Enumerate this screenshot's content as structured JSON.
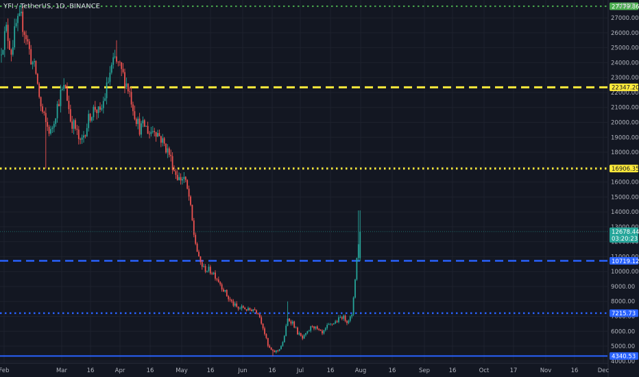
{
  "title": "YFI / TetherUS, 1D, BINANCE",
  "axis_unit": "USDT",
  "colors": {
    "background": "#131722",
    "grid": "#1e222d",
    "up": "#26a69a",
    "down": "#ef5350",
    "axis_text": "#b2b5be"
  },
  "chart_data": {
    "type": "candlestick",
    "x_ticks": [
      "Feb",
      "Mar",
      "16",
      "Apr",
      "16",
      "May",
      "16",
      "Jun",
      "16",
      "Jul",
      "16",
      "Aug",
      "16",
      "Sep",
      "16",
      "Oct",
      "17",
      "Nov",
      "16",
      "Dec"
    ],
    "y_ticks": [
      4000,
      5000,
      6000,
      7000,
      8000,
      9000,
      10000,
      11000,
      12000,
      13000,
      14000,
      15000,
      16000,
      17000,
      18000,
      19000,
      20000,
      21000,
      22000,
      23000,
      24000,
      25000,
      26000,
      27000
    ],
    "y_tick_labels": [
      "4000.00",
      "5000.00",
      "6000.00",
      "7000.00",
      "8000.00",
      "9000.00",
      "10000.00",
      "11000.00",
      "12000.00",
      "13000.00",
      "14000.00",
      "15000.00",
      "16000.00",
      "17000.00",
      "18000.00",
      "19000.00",
      "20000.00",
      "21000.00",
      "22000.00",
      "23000.00",
      "24000.00",
      "25000.00",
      "26000.00",
      "27000.00"
    ],
    "ylim": [
      3900,
      28200
    ],
    "x_range_days": [
      0,
      314
    ],
    "last_price_label": "12678.44",
    "countdown_label": "03:20:23",
    "levels": [
      {
        "value": 27779.86,
        "label": "27779.86",
        "color": "#4caf50",
        "style": "dotted",
        "width": 2
      },
      {
        "value": 22347.2,
        "label": "22347.20",
        "color": "#ffeb3b",
        "style": "dashed",
        "width": 3
      },
      {
        "value": 16906.35,
        "label": "16906.35",
        "color": "#ffeb3b",
        "style": "dotted",
        "width": 3
      },
      {
        "value": 10719.12,
        "label": "10719.12",
        "color": "#2962ff",
        "style": "dashed",
        "width": 2.5
      },
      {
        "value": 7215.73,
        "label": "7215.73",
        "color": "#2962ff",
        "style": "dotted",
        "width": 2.5
      },
      {
        "value": 4340.53,
        "label": "4340.53",
        "color": "#2962ff",
        "style": "solid",
        "width": 2
      }
    ],
    "anchor_closes": [
      [
        0,
        25000
      ],
      [
        3,
        26200
      ],
      [
        6,
        24800
      ],
      [
        9,
        26500
      ],
      [
        12,
        26900
      ],
      [
        15,
        25800
      ],
      [
        18,
        24300
      ],
      [
        21,
        23300
      ],
      [
        24,
        21000
      ],
      [
        27,
        19900
      ],
      [
        30,
        19300
      ],
      [
        33,
        20700
      ],
      [
        36,
        21900
      ],
      [
        39,
        22400
      ],
      [
        42,
        20200
      ],
      [
        45,
        19600
      ],
      [
        48,
        18500
      ],
      [
        51,
        19500
      ],
      [
        54,
        20500
      ],
      [
        57,
        21000
      ],
      [
        60,
        20500
      ],
      [
        63,
        21800
      ],
      [
        66,
        23300
      ],
      [
        69,
        24200
      ],
      [
        72,
        23600
      ],
      [
        75,
        22900
      ],
      [
        78,
        22000
      ],
      [
        81,
        20600
      ],
      [
        84,
        19600
      ],
      [
        87,
        19800
      ],
      [
        90,
        19300
      ],
      [
        93,
        19600
      ],
      [
        96,
        19100
      ],
      [
        99,
        18500
      ],
      [
        102,
        17900
      ],
      [
        105,
        16800
      ],
      [
        108,
        16200
      ],
      [
        111,
        16300
      ],
      [
        114,
        15000
      ],
      [
        117,
        12500
      ],
      [
        120,
        10800
      ],
      [
        123,
        10200
      ],
      [
        126,
        10100
      ],
      [
        129,
        9900
      ],
      [
        132,
        9400
      ],
      [
        135,
        8800
      ],
      [
        138,
        8200
      ],
      [
        141,
        7800
      ],
      [
        144,
        7500
      ],
      [
        147,
        7600
      ],
      [
        150,
        7400
      ],
      [
        153,
        7500
      ],
      [
        156,
        7300
      ],
      [
        159,
        6300
      ],
      [
        162,
        5000
      ],
      [
        165,
        4600
      ],
      [
        168,
        4700
      ],
      [
        171,
        5200
      ],
      [
        174,
        6800
      ],
      [
        177,
        6600
      ],
      [
        180,
        5900
      ],
      [
        183,
        5500
      ],
      [
        186,
        5900
      ],
      [
        189,
        6400
      ],
      [
        192,
        6100
      ],
      [
        195,
        5800
      ],
      [
        198,
        6300
      ],
      [
        201,
        6500
      ],
      [
        204,
        6700
      ],
      [
        207,
        7000
      ],
      [
        210,
        6700
      ],
      [
        213,
        7000
      ],
      [
        216,
        10900
      ],
      [
        218,
        12678
      ]
    ]
  }
}
